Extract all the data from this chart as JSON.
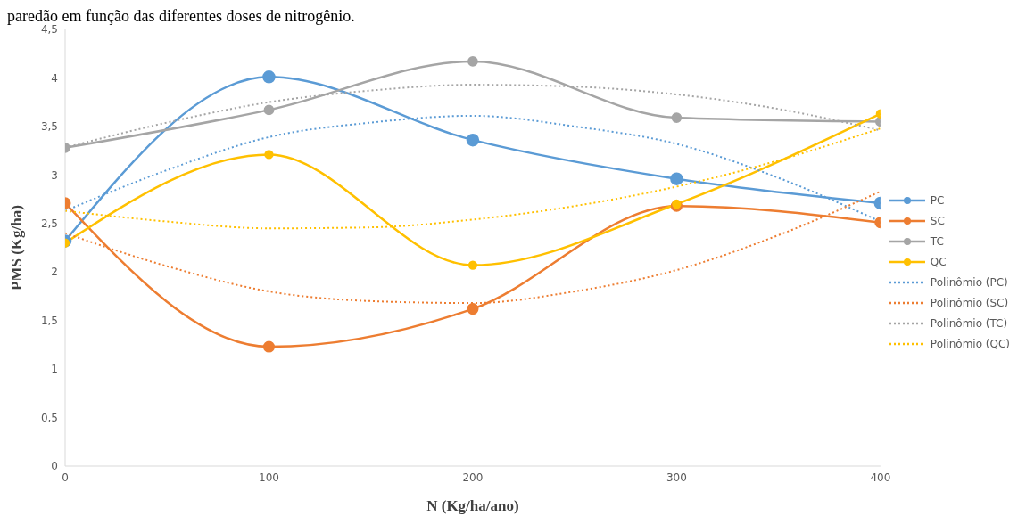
{
  "chart_data": {
    "type": "line",
    "annotations": [
      "paredão em função das diferentes doses de nitrogênio."
    ],
    "xlabel": "N (Kg/ha/ano)",
    "ylabel": "PMS (Kg/ha)",
    "xlim": [
      0,
      400
    ],
    "xticks": [
      0,
      100,
      200,
      300,
      400
    ],
    "ylim": [
      0,
      4.5
    ],
    "yticks": [
      {
        "value": 0,
        "label": "0"
      },
      {
        "value": 0.5,
        "label": "0,5"
      },
      {
        "value": 1,
        "label": "1"
      },
      {
        "value": 1.5,
        "label": "1,5"
      },
      {
        "value": 2,
        "label": "2"
      },
      {
        "value": 2.5,
        "label": "2,5"
      },
      {
        "value": 3,
        "label": "3"
      },
      {
        "value": 3.5,
        "label": "3,5"
      },
      {
        "value": 4,
        "label": "4"
      },
      {
        "value": 4.5,
        "label": "4,5"
      }
    ],
    "grid": false,
    "legend": "right",
    "marker": "circle",
    "line_style": "solid",
    "series": [
      {
        "name": "PC",
        "color": "#5b9bd5",
        "x": [
          0,
          100,
          200,
          300,
          400
        ],
        "values": [
          2.32,
          4.01,
          3.36,
          2.96,
          2.71
        ]
      },
      {
        "name": "SC",
        "color": "#ed7d31",
        "x": [
          0,
          100,
          200,
          300,
          400
        ],
        "values": [
          2.71,
          1.23,
          1.62,
          2.68,
          2.51
        ]
      },
      {
        "name": "TC",
        "color": "#a5a5a5",
        "x": [
          0,
          100,
          200,
          300,
          400
        ],
        "values": [
          3.28,
          3.67,
          4.17,
          3.59,
          3.55
        ]
      },
      {
        "name": "QC",
        "color": "#ffc000",
        "x": [
          0,
          100,
          200,
          300,
          400
        ],
        "values": [
          2.3,
          3.21,
          2.07,
          2.7,
          3.63
        ]
      },
      {
        "name": "Polinômio (PC)",
        "color": "#5b9bd5",
        "marker": "none",
        "line_style": "dotted",
        "x": [
          0,
          50,
          100,
          150,
          200,
          250,
          300,
          350,
          400
        ],
        "values": [
          2.63,
          3.05,
          3.39,
          3.54,
          3.61,
          3.5,
          3.32,
          2.97,
          2.52
        ]
      },
      {
        "name": "Polinômio (SC)",
        "color": "#ed7d31",
        "marker": "none",
        "line_style": "dotted",
        "x": [
          0,
          50,
          100,
          150,
          200,
          250,
          300,
          350,
          400
        ],
        "values": [
          2.4,
          2.06,
          1.8,
          1.7,
          1.68,
          1.8,
          2.02,
          2.38,
          2.83
        ]
      },
      {
        "name": "Polinômio (TC)",
        "color": "#a5a5a5",
        "marker": "none",
        "line_style": "dotted",
        "x": [
          0,
          50,
          100,
          150,
          200,
          250,
          300,
          350,
          400
        ],
        "values": [
          3.28,
          3.54,
          3.75,
          3.87,
          3.93,
          3.91,
          3.83,
          3.68,
          3.46
        ]
      },
      {
        "name": "Polinômio (QC)",
        "color": "#ffc000",
        "marker": "none",
        "line_style": "dotted",
        "x": [
          0,
          50,
          100,
          150,
          200,
          250,
          300,
          350,
          400
        ],
        "values": [
          2.63,
          2.52,
          2.45,
          2.46,
          2.54,
          2.68,
          2.88,
          3.15,
          3.48
        ]
      }
    ]
  }
}
